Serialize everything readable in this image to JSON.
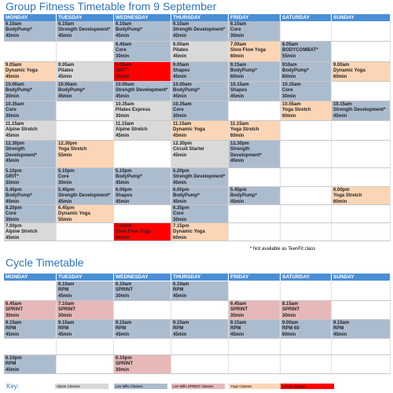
{
  "days": [
    "MONDAY",
    "TUESDAY",
    "WEDNESDAY",
    "THURSDAY",
    "FRIDAY",
    "SATURDAY",
    "SUNDAY"
  ],
  "tables": [
    {
      "title": "Group Fitness Timetable from 9 September",
      "rows": [
        [
          {
            "time": "6.10am",
            "name": "BodyPump*",
            "duration": "45min",
            "color": "#acbccf"
          },
          {
            "time": "6.10am",
            "name": "Strength Development*",
            "duration": "45min",
            "color": "#acbccf"
          },
          {
            "time": "6.10am",
            "name": "BodyPump*",
            "duration": "45min",
            "color": "#acbccf"
          },
          {
            "time": "6.10am",
            "name": "Strength Development*",
            "duration": "45min",
            "color": "#acbccf"
          },
          {
            "time": "6.10am",
            "name": "Core",
            "duration": "30min",
            "color": "#acbccf"
          },
          null,
          null
        ],
        [
          null,
          null,
          {
            "time": "6.40am",
            "name": "Core",
            "duration": "30min",
            "color": "#acbccf"
          },
          {
            "time": "8.00am",
            "name": "Pilates",
            "duration": "45min",
            "color": "#d9d9d9"
          },
          {
            "time": "7.00am",
            "name": "Slow Flow Yoga",
            "duration": "60min",
            "color": "#fbd5b5"
          },
          {
            "time": "8.05am",
            "name": "BODYCOMBAT*",
            "duration": "55min",
            "color": "#acbccf"
          },
          null
        ],
        [
          {
            "time": "9.05am",
            "name": "Dynamic Yoga",
            "duration": "45min",
            "color": "#fbd5b5"
          },
          {
            "time": "9.05am",
            "name": "Pilates",
            "duration": "45min",
            "color": "#d9d9d9"
          },
          {
            "time": "9.05am",
            "name": "GRIT*",
            "duration": "30min",
            "color": "#ff0000"
          },
          {
            "time": "9.05am",
            "name": "Shapes",
            "duration": "45min",
            "color": "#acbccf"
          },
          {
            "time": "9.15am",
            "name": "BodyPump*",
            "duration": "60min",
            "color": "#acbccf"
          },
          {
            "time": "910am",
            "name": "BodyPump*",
            "duration": "60min",
            "color": "#acbccf"
          },
          {
            "time": "9.00am",
            "name": "Dynamic Yoga",
            "duration": "60min",
            "color": "#fbd5b5"
          }
        ],
        [
          {
            "time": "10.00am",
            "name": "BodyPump*",
            "duration": "30min",
            "color": "#acbccf"
          },
          {
            "time": "10.00am",
            "name": "BodyPump*",
            "duration": "45min",
            "color": "#acbccf"
          },
          {
            "time": "10.00am",
            "name": "Strength Development*",
            "duration": "45min",
            "color": "#acbccf"
          },
          {
            "time": "10.00am",
            "name": "BodyPump*",
            "duration": "45min",
            "color": "#acbccf"
          },
          {
            "time": "10.15am",
            "name": "Shapes",
            "duration": "45min",
            "color": "#acbccf"
          },
          {
            "time": "10.15am",
            "name": "Core",
            "duration": "30min",
            "color": "#acbccf"
          },
          null
        ],
        [
          {
            "time": "10.35am",
            "name": "Core",
            "duration": "30min",
            "color": "#acbccf"
          },
          null,
          {
            "time": "10.35am",
            "name": "Pilates Express",
            "duration": "30min",
            "color": "#d9d9d9"
          },
          {
            "time": "10.35am",
            "name": "Core",
            "duration": "30min",
            "color": "#acbccf"
          },
          null,
          {
            "time": "10.55am",
            "name": "Yoga Stretch",
            "duration": "60min",
            "color": "#fbd5b5"
          },
          {
            "time": "10.15am",
            "name": "Strength Development*",
            "duration": "45min",
            "color": "#acbccf"
          }
        ],
        [
          {
            "time": "11.15am",
            "name": "Alpine Stretch",
            "duration": "45min",
            "color": "#d9d9d9"
          },
          null,
          {
            "time": "11.15am",
            "name": "Alpine Stretch",
            "duration": "45min",
            "color": "#d9d9d9"
          },
          {
            "time": "11.15am",
            "name": "Dynamic Yoga",
            "duration": "45min",
            "color": "#fbd5b5"
          },
          {
            "time": "11.15am",
            "name": "Yoga Stretch",
            "duration": "60min",
            "color": "#fbd5b5"
          },
          null,
          null
        ],
        [
          {
            "time": "12.30pm",
            "name": "Strength Development*",
            "duration": "45min",
            "color": "#acbccf"
          },
          {
            "time": "12.30pm",
            "name": "Yoga Stretch",
            "duration": "55min",
            "color": "#fbd5b5"
          },
          null,
          {
            "time": "12.30pm",
            "name": "Circuit Starter",
            "duration": "45min",
            "color": "#d9d9d9"
          },
          {
            "time": "12.30pm",
            "name": "Strength Development*",
            "duration": "45min",
            "color": "#acbccf"
          },
          null,
          null
        ],
        [
          {
            "time": "5.10pm",
            "name": "GRIT*",
            "duration": "30min",
            "color": "#acbccf"
          },
          {
            "time": "5.10pm",
            "name": "Core",
            "duration": "30min",
            "color": "#acbccf"
          },
          {
            "time": "5.10pm",
            "name": "BodyPump*",
            "duration": "45min",
            "color": "#acbccf"
          },
          {
            "time": "5.20pm",
            "name": "Strength Development*",
            "duration": "45min",
            "color": "#acbccf"
          },
          null,
          null,
          null
        ],
        [
          {
            "time": "5.45pm",
            "name": "BodyPump*",
            "duration": "45min",
            "color": "#acbccf"
          },
          {
            "time": "5.45pm",
            "name": "Strength Development*",
            "duration": "45min",
            "color": "#acbccf"
          },
          {
            "time": "6.00pm",
            "name": "Shapes",
            "duration": "45min",
            "color": "#acbccf"
          },
          {
            "time": "6.00pm",
            "name": "BodyPump*",
            "duration": "45min",
            "color": "#acbccf"
          },
          {
            "time": "5.45pm",
            "name": "BodyPump*",
            "duration": "45min",
            "color": "#acbccf"
          },
          null,
          {
            "time": "6.00pm",
            "name": "Yoga Stretch",
            "duration": "60min",
            "color": "#fbd5b5"
          }
        ],
        [
          {
            "time": "6.20pm",
            "name": "Core",
            "duration": "30min",
            "color": "#acbccf"
          },
          {
            "time": "6.45pm",
            "name": "Dynamic Yoga",
            "duration": "55min",
            "color": "#fbd5b5"
          },
          null,
          {
            "time": "6.35pm",
            "name": "Core",
            "duration": "30min",
            "color": "#acbccf"
          },
          null,
          null,
          null
        ],
        [
          {
            "time": "7.00pm",
            "name": "Alpine Stretch",
            "duration": "45min",
            "color": "#d9d9d9"
          },
          null,
          {
            "time": "7.00pm",
            "name": "Slow Flow Yoga",
            "duration": "60min",
            "color": "#ff0000"
          },
          {
            "time": "7.15pm",
            "name": "Dynamic Yoga",
            "duration": "60min",
            "color": "#fbd5b5"
          },
          null,
          null,
          null
        ]
      ],
      "note": "* Not available as TeenFit class"
    },
    {
      "title": "Cycle Timetable",
      "rows": [
        [
          null,
          {
            "time": "6.10am",
            "name": "RPM",
            "duration": "45min",
            "color": "#acbccf"
          },
          {
            "time": "6.10am",
            "name": "SPRINT",
            "duration": "30min",
            "color": "#acbccf"
          },
          {
            "time": "6.10am",
            "name": "RPM",
            "duration": "45min",
            "color": "#acbccf"
          },
          null,
          null,
          null
        ],
        [
          {
            "time": "6.45am",
            "name": "SPRINT",
            "duration": "30min",
            "color": "#e6b9b8"
          },
          {
            "time": "7.10am",
            "name": "SPRINT",
            "duration": "30min",
            "color": "#e6b9b8"
          },
          null,
          null,
          {
            "time": "6.45am",
            "name": "SPRINT",
            "duration": "30min",
            "color": "#e6b9b8"
          },
          {
            "time": "8.15am",
            "name": "SPRINT",
            "duration": "30min",
            "color": "#e6b9b8"
          },
          null
        ],
        [
          {
            "time": "9.15am",
            "name": "RPM",
            "duration": "45min",
            "color": "#acbccf"
          },
          {
            "time": "9.15am",
            "name": "RPM",
            "duration": "45min",
            "color": "#acbccf"
          },
          {
            "time": "9.15am",
            "name": "RPM",
            "duration": "45min",
            "color": "#acbccf"
          },
          {
            "time": "9.15am",
            "name": "RPM",
            "duration": "45min",
            "color": "#acbccf"
          },
          {
            "time": "9.15am",
            "name": "RPM",
            "duration": "45min",
            "color": "#acbccf"
          },
          {
            "time": "9.00am",
            "name": "RPM 60",
            "duration": "60min",
            "color": "#acbccf"
          },
          {
            "time": "9.15am",
            "name": "RPM",
            "duration": "45min",
            "color": "#acbccf"
          }
        ],
        [
          null,
          null,
          null,
          null,
          null,
          null,
          null
        ],
        [
          {
            "time": "6.10pm",
            "name": "RPM",
            "duration": "45min",
            "color": "#acbccf"
          },
          null,
          {
            "time": "6.10pm",
            "name": "SPRINT",
            "duration": "30min",
            "color": "#e6b9b8"
          },
          null,
          null,
          null,
          null
        ]
      ]
    }
  ],
  "key": {
    "label": "Key:",
    "items": [
      {
        "label": "Alpine Classes",
        "color": "#d9d9d9"
      },
      {
        "label": "Les Mills Classes",
        "color": "#acbccf"
      },
      {
        "label": "Les Mills SPRINT classes",
        "color": "#e6b9b8"
      },
      {
        "label": "Yoga Classes",
        "color": "#fbd5b5"
      },
      {
        "label": "Latest changes",
        "color": "#ff0000"
      }
    ]
  }
}
